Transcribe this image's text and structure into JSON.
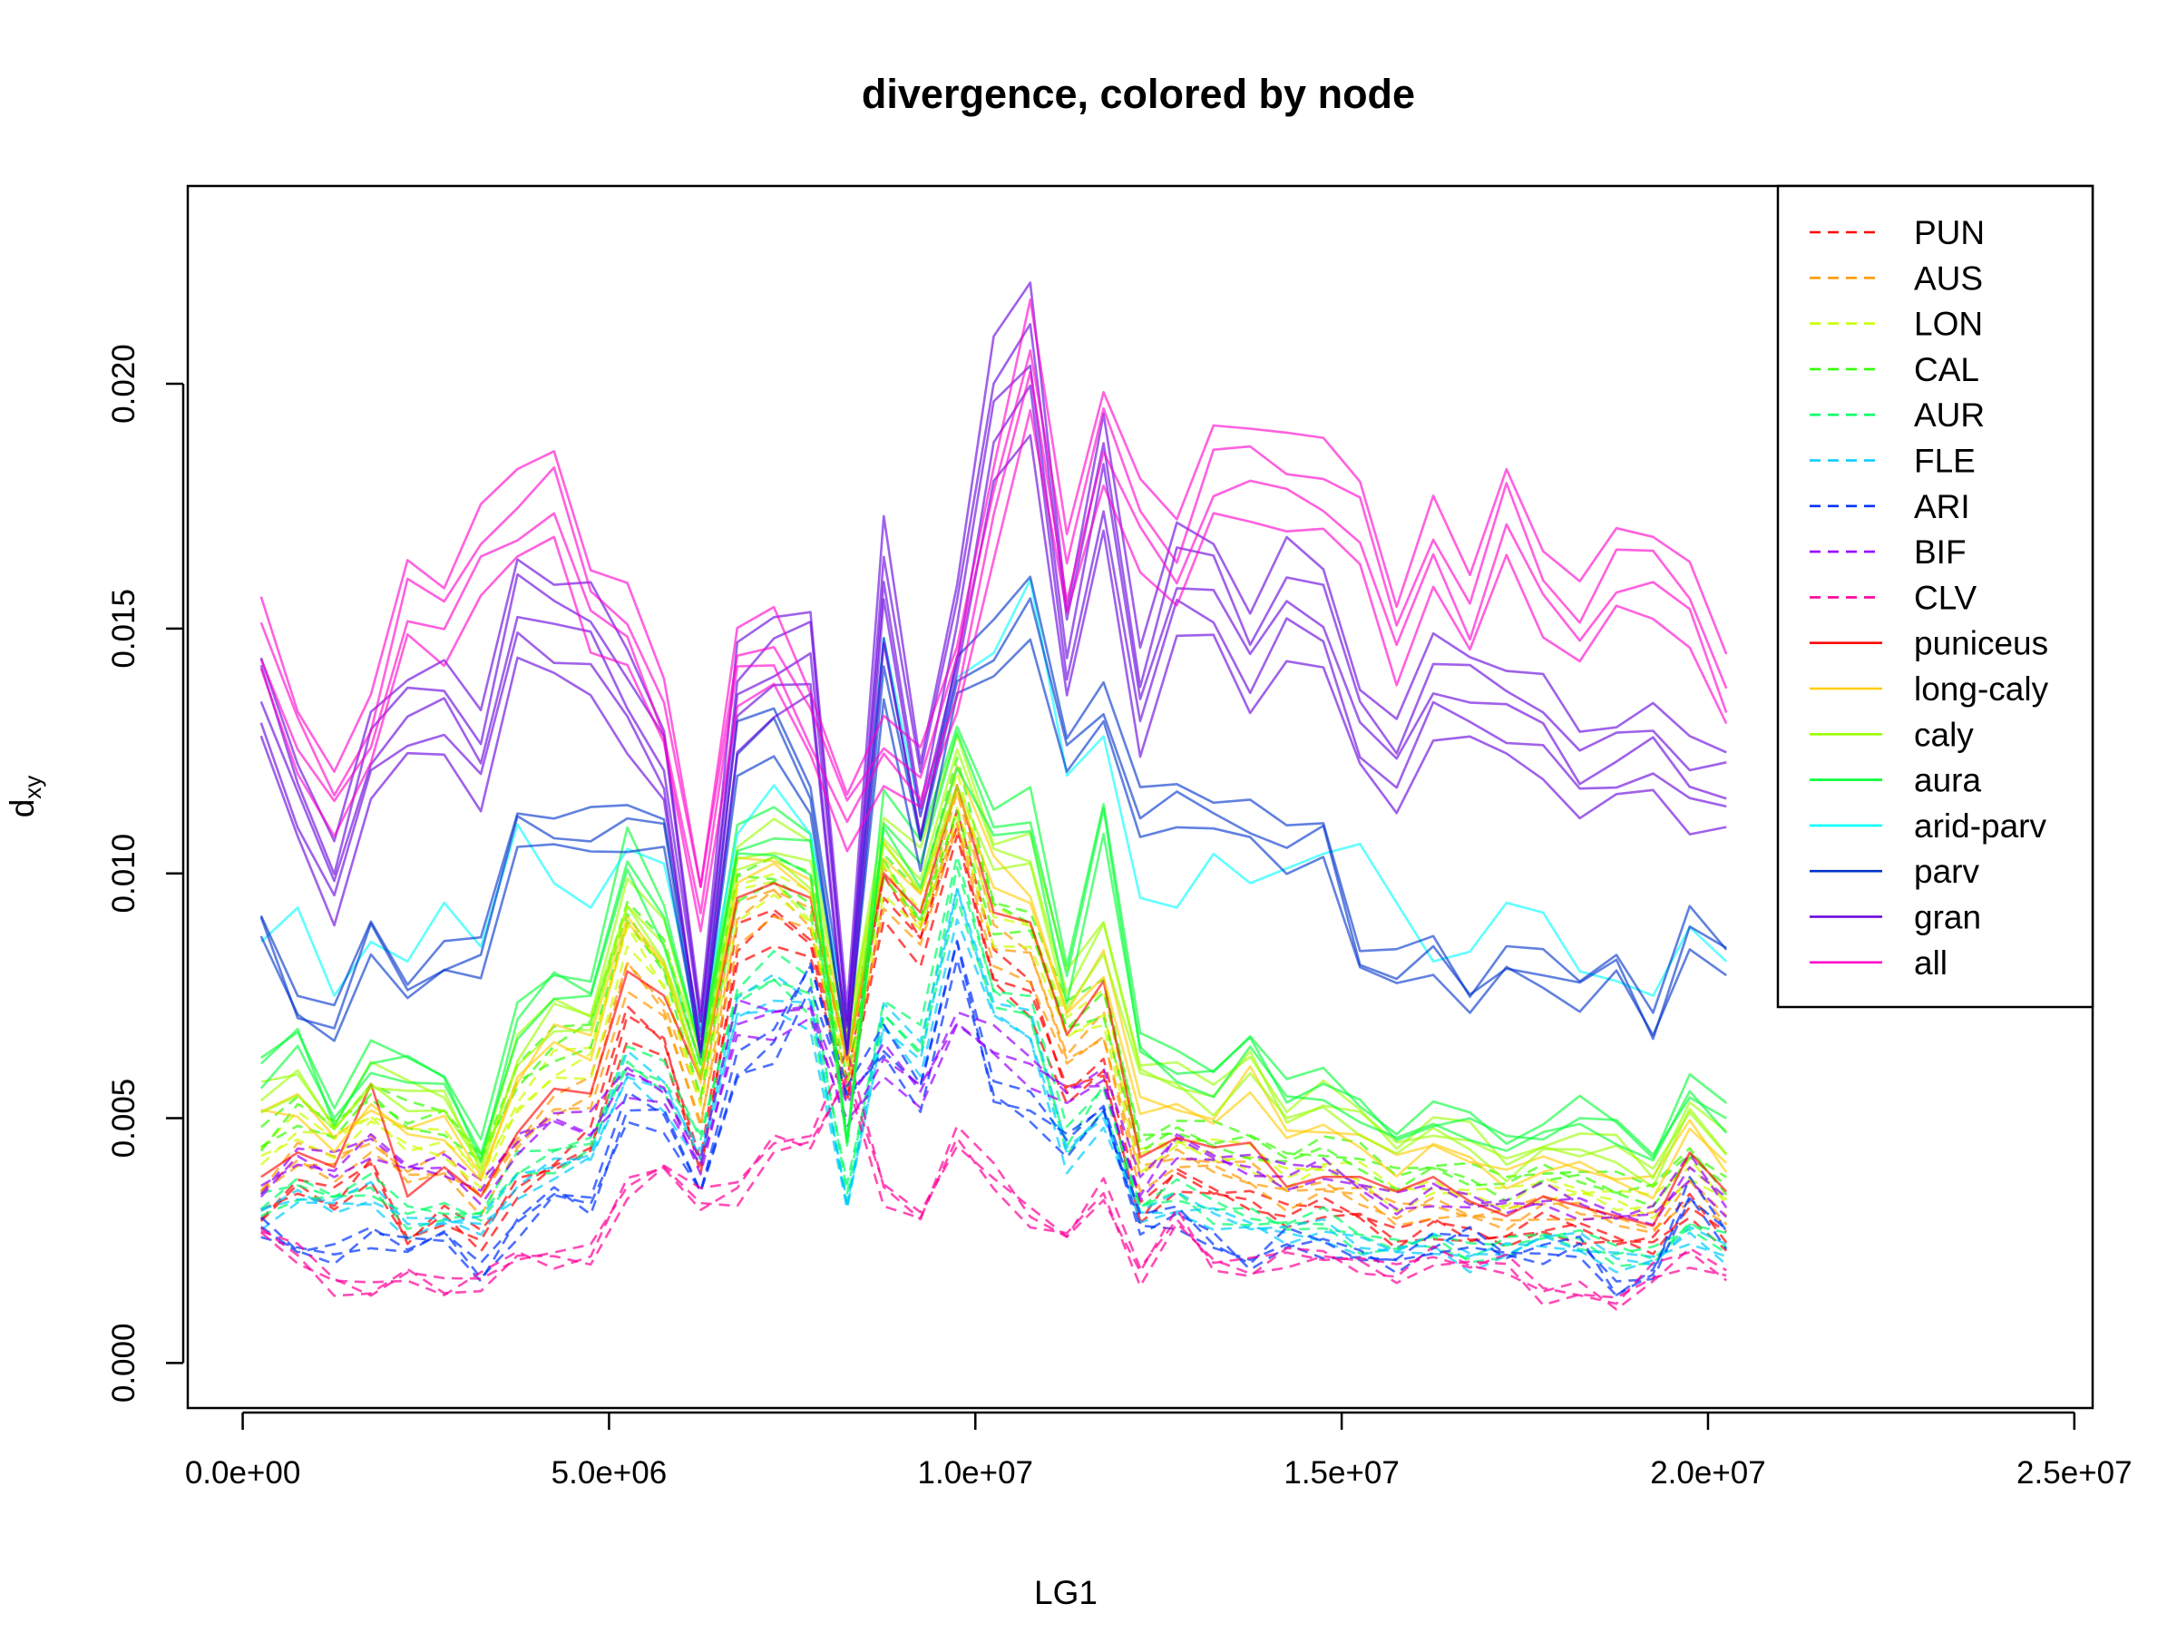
{
  "chart_data": {
    "type": "line",
    "title": "divergence, colored by node",
    "xlabel": "LG1",
    "ylabel_main": "d",
    "ylabel_sub": "xy",
    "xlim": [
      -750000,
      25250000
    ],
    "ylim": [
      -0.00092,
      0.02404
    ],
    "x_ticks": [
      0,
      5000000,
      10000000,
      15000000,
      20000000,
      25000000
    ],
    "x_tick_labels": [
      "0.0e+00",
      "5.0e+06",
      "1.0e+07",
      "1.5e+07",
      "2.0e+07",
      "2.5e+07"
    ],
    "y_ticks": [
      0.0,
      0.005,
      0.01,
      0.015,
      0.02
    ],
    "y_tick_labels": [
      "0.000",
      "0.005",
      "0.010",
      "0.015",
      "0.020"
    ],
    "grid": false,
    "legend_position": "top-right",
    "x": [
      250000,
      750000,
      1250000,
      1750000,
      2250000,
      2750000,
      3250000,
      3750000,
      4250000,
      4750000,
      5250000,
      5750000,
      6250000,
      6750000,
      7250000,
      7750000,
      8250000,
      8750000,
      9250000,
      9750000,
      10250000,
      10750000,
      11250000,
      11750000,
      12250000,
      12750000,
      13250000,
      13750000,
      14250000,
      14750000,
      15250000,
      15750000,
      16250000,
      16750000,
      17250000,
      17750000,
      18250000,
      18750000,
      19250000,
      19750000,
      20250000
    ],
    "series": [
      {
        "name": "PUN",
        "color": "#FF0000",
        "dash": true,
        "lines": 3,
        "values": [
          0.003,
          0.0036,
          0.0033,
          0.004,
          0.0025,
          0.003,
          0.0025,
          0.0036,
          0.004,
          0.0045,
          0.007,
          0.0065,
          0.004,
          0.0085,
          0.009,
          0.0085,
          0.0055,
          0.0095,
          0.0085,
          0.011,
          0.008,
          0.0075,
          0.0055,
          0.006,
          0.003,
          0.0038,
          0.0035,
          0.0033,
          0.003,
          0.0032,
          0.003,
          0.0025,
          0.0028,
          0.0026,
          0.0025,
          0.0028,
          0.0027,
          0.0025,
          0.0024,
          0.0032,
          0.0025
        ]
      },
      {
        "name": "AUS",
        "color": "#FF9900",
        "dash": true,
        "lines": 3,
        "values": [
          0.0035,
          0.0042,
          0.004,
          0.0045,
          0.0038,
          0.004,
          0.0033,
          0.0045,
          0.0052,
          0.0055,
          0.008,
          0.0072,
          0.005,
          0.009,
          0.0095,
          0.009,
          0.0058,
          0.0098,
          0.0088,
          0.0112,
          0.0085,
          0.0082,
          0.0062,
          0.0068,
          0.0038,
          0.0042,
          0.004,
          0.0038,
          0.0034,
          0.0036,
          0.0034,
          0.003,
          0.0032,
          0.003,
          0.0029,
          0.0032,
          0.0031,
          0.0029,
          0.0028,
          0.0036,
          0.0029
        ]
      },
      {
        "name": "LON",
        "color": "#CCFF00",
        "dash": true,
        "lines": 3,
        "values": [
          0.0042,
          0.0048,
          0.0045,
          0.005,
          0.0045,
          0.0045,
          0.0038,
          0.0052,
          0.006,
          0.0062,
          0.0088,
          0.0078,
          0.0055,
          0.0095,
          0.0098,
          0.0092,
          0.006,
          0.01,
          0.009,
          0.0115,
          0.009,
          0.0088,
          0.0068,
          0.0072,
          0.0042,
          0.0045,
          0.0043,
          0.0042,
          0.0038,
          0.004,
          0.0038,
          0.0034,
          0.0036,
          0.0034,
          0.0033,
          0.0036,
          0.0035,
          0.0033,
          0.0032,
          0.004,
          0.0033
        ]
      },
      {
        "name": "CAL",
        "color": "#33FF00",
        "dash": true,
        "lines": 3,
        "values": [
          0.0045,
          0.0052,
          0.0048,
          0.0055,
          0.005,
          0.005,
          0.0042,
          0.0058,
          0.0065,
          0.0068,
          0.0092,
          0.0082,
          0.0058,
          0.0098,
          0.01,
          0.0095,
          0.0062,
          0.0102,
          0.0092,
          0.0118,
          0.0092,
          0.009,
          0.007,
          0.0075,
          0.0045,
          0.0048,
          0.0046,
          0.0045,
          0.0042,
          0.0044,
          0.0042,
          0.0038,
          0.004,
          0.0038,
          0.0036,
          0.0039,
          0.0038,
          0.0036,
          0.0035,
          0.0043,
          0.0036
        ]
      },
      {
        "name": "AUR",
        "color": "#00FF66",
        "dash": true,
        "lines": 3,
        "values": [
          0.0032,
          0.0036,
          0.0034,
          0.0036,
          0.003,
          0.0031,
          0.003,
          0.004,
          0.0042,
          0.0045,
          0.0062,
          0.0058,
          0.0045,
          0.0075,
          0.008,
          0.0075,
          0.0035,
          0.0072,
          0.0065,
          0.01,
          0.0075,
          0.0072,
          0.0045,
          0.0055,
          0.0032,
          0.0035,
          0.0031,
          0.003,
          0.0028,
          0.0029,
          0.0025,
          0.0024,
          0.0025,
          0.0022,
          0.0024,
          0.0026,
          0.0025,
          0.0022,
          0.0022,
          0.0028,
          0.0024
        ]
      },
      {
        "name": "FLE",
        "color": "#00CCFF",
        "dash": true,
        "lines": 3,
        "values": [
          0.003,
          0.0034,
          0.0032,
          0.0034,
          0.0028,
          0.0029,
          0.0028,
          0.0036,
          0.004,
          0.0042,
          0.006,
          0.0055,
          0.0042,
          0.0072,
          0.0075,
          0.0072,
          0.0032,
          0.007,
          0.0062,
          0.0095,
          0.0072,
          0.0068,
          0.0042,
          0.005,
          0.003,
          0.0032,
          0.003,
          0.0028,
          0.0026,
          0.0027,
          0.0024,
          0.0023,
          0.0024,
          0.0021,
          0.0023,
          0.0025,
          0.0024,
          0.0021,
          0.0021,
          0.0026,
          0.0022
        ]
      },
      {
        "name": "ARI",
        "color": "#0033FF",
        "dash": true,
        "lines": 3,
        "values": [
          0.0028,
          0.0023,
          0.0022,
          0.0026,
          0.0024,
          0.0026,
          0.0018,
          0.0028,
          0.0035,
          0.0032,
          0.0052,
          0.005,
          0.0035,
          0.006,
          0.0065,
          0.008,
          0.0055,
          0.0065,
          0.0055,
          0.0085,
          0.0055,
          0.0052,
          0.0045,
          0.0052,
          0.0028,
          0.003,
          0.0025,
          0.002,
          0.0025,
          0.0024,
          0.0022,
          0.002,
          0.0024,
          0.0026,
          0.0022,
          0.0022,
          0.0024,
          0.0015,
          0.0018,
          0.0035,
          0.0026
        ]
      },
      {
        "name": "BIF",
        "color": "#9900FF",
        "dash": true,
        "lines": 3,
        "values": [
          0.0035,
          0.0042,
          0.004,
          0.0045,
          0.004,
          0.004,
          0.0035,
          0.0045,
          0.005,
          0.0048,
          0.0058,
          0.0055,
          0.004,
          0.007,
          0.007,
          0.0072,
          0.005,
          0.0062,
          0.0055,
          0.007,
          0.0065,
          0.006,
          0.0055,
          0.0058,
          0.0035,
          0.0045,
          0.0042,
          0.004,
          0.0038,
          0.004,
          0.0036,
          0.0032,
          0.0035,
          0.0033,
          0.0032,
          0.0034,
          0.0032,
          0.003,
          0.003,
          0.004,
          0.0032
        ]
      },
      {
        "name": "CLV",
        "color": "#FF0099",
        "dash": true,
        "lines": 3,
        "values": [
          0.0027,
          0.0022,
          0.0016,
          0.0015,
          0.0018,
          0.0015,
          0.0017,
          0.0022,
          0.0021,
          0.0022,
          0.0036,
          0.004,
          0.0033,
          0.0035,
          0.0045,
          0.0045,
          0.006,
          0.0035,
          0.003,
          0.0046,
          0.0038,
          0.003,
          0.0026,
          0.0035,
          0.0018,
          0.003,
          0.002,
          0.0019,
          0.0022,
          0.0022,
          0.002,
          0.0018,
          0.0022,
          0.002,
          0.002,
          0.0014,
          0.0015,
          0.0012,
          0.0018,
          0.0022,
          0.0018
        ]
      },
      {
        "name": "puniceus",
        "color": "#FF0000",
        "dash": false,
        "lines": 1,
        "values": [
          0.0038,
          0.0043,
          0.004,
          0.0057,
          0.0034,
          0.004,
          0.0034,
          0.0047,
          0.0056,
          0.0055,
          0.008,
          0.0075,
          0.0058,
          0.0095,
          0.0098,
          0.0095,
          0.0062,
          0.01,
          0.0092,
          0.0118,
          0.0092,
          0.009,
          0.0067,
          0.0078,
          0.0042,
          0.0046,
          0.0044,
          0.0045,
          0.0036,
          0.0038,
          0.0038,
          0.0035,
          0.0038,
          0.0033,
          0.003,
          0.0034,
          0.0032,
          0.003,
          0.0028,
          0.0043,
          0.0035
        ]
      },
      {
        "name": "long-caly",
        "color": "#FFCC00",
        "dash": false,
        "lines": 2,
        "values": [
          0.0052,
          0.0053,
          0.0044,
          0.0052,
          0.0048,
          0.0048,
          0.0037,
          0.0058,
          0.0068,
          0.0064,
          0.009,
          0.0082,
          0.006,
          0.01,
          0.0102,
          0.0098,
          0.0064,
          0.0104,
          0.0096,
          0.012,
          0.01,
          0.0094,
          0.0072,
          0.0082,
          0.0052,
          0.0052,
          0.005,
          0.0058,
          0.0046,
          0.0048,
          0.0046,
          0.004,
          0.0044,
          0.0042,
          0.0038,
          0.004,
          0.004,
          0.0038,
          0.0036,
          0.0048,
          0.004
        ]
      },
      {
        "name": "caly",
        "color": "#99FF00",
        "dash": false,
        "lines": 3,
        "values": [
          0.0054,
          0.0058,
          0.0048,
          0.0058,
          0.0055,
          0.0054,
          0.004,
          0.0063,
          0.0072,
          0.007,
          0.0095,
          0.0086,
          0.0062,
          0.0103,
          0.0106,
          0.0102,
          0.0066,
          0.0108,
          0.01,
          0.0124,
          0.0104,
          0.0104,
          0.0076,
          0.0088,
          0.006,
          0.0058,
          0.0054,
          0.0062,
          0.005,
          0.0054,
          0.005,
          0.0044,
          0.0048,
          0.0046,
          0.004,
          0.0044,
          0.0044,
          0.0044,
          0.0038,
          0.0052,
          0.0044
        ]
      },
      {
        "name": "aura",
        "color": "#00FF33",
        "dash": false,
        "lines": 3,
        "values": [
          0.006,
          0.0067,
          0.005,
          0.0062,
          0.0061,
          0.0058,
          0.0043,
          0.007,
          0.0078,
          0.0076,
          0.0104,
          0.009,
          0.0063,
          0.0106,
          0.0108,
          0.0105,
          0.0045,
          0.0112,
          0.0102,
          0.0127,
          0.011,
          0.0112,
          0.0078,
          0.0112,
          0.0065,
          0.006,
          0.0058,
          0.0066,
          0.0055,
          0.0057,
          0.0052,
          0.0046,
          0.005,
          0.0049,
          0.0045,
          0.0047,
          0.0051,
          0.0048,
          0.0042,
          0.0056,
          0.005
        ]
      },
      {
        "name": "arid-parv",
        "color": "#00FFFF",
        "dash": false,
        "lines": 1,
        "values": [
          0.0086,
          0.0093,
          0.0075,
          0.0086,
          0.0082,
          0.0094,
          0.0085,
          0.011,
          0.0098,
          0.0093,
          0.0105,
          0.0102,
          0.0068,
          0.0108,
          0.0118,
          0.0108,
          0.007,
          0.0148,
          0.0112,
          0.014,
          0.0145,
          0.016,
          0.012,
          0.0128,
          0.0095,
          0.0093,
          0.0104,
          0.0098,
          0.0101,
          0.0104,
          0.0106,
          0.0094,
          0.0082,
          0.0084,
          0.0094,
          0.0092,
          0.008,
          0.0078,
          0.0075,
          0.0089,
          0.0082
        ]
      },
      {
        "name": "parv",
        "color": "#0033CC",
        "dash": false,
        "lines": 3,
        "values": [
          0.009,
          0.0072,
          0.0069,
          0.0088,
          0.0076,
          0.0082,
          0.0083,
          0.011,
          0.0108,
          0.0108,
          0.011,
          0.0109,
          0.0064,
          0.0125,
          0.013,
          0.0115,
          0.0065,
          0.0142,
          0.0105,
          0.014,
          0.0145,
          0.0155,
          0.0125,
          0.0134,
          0.0112,
          0.0115,
          0.0112,
          0.011,
          0.0105,
          0.0108,
          0.0082,
          0.008,
          0.0084,
          0.0074,
          0.0082,
          0.008,
          0.0076,
          0.0082,
          0.0068,
          0.0089,
          0.0083
        ]
      },
      {
        "name": "gran",
        "color": "#6600DD",
        "dash": false,
        "lines": 5,
        "values": [
          0.0136,
          0.0115,
          0.0098,
          0.0124,
          0.0132,
          0.0134,
          0.0123,
          0.0154,
          0.015,
          0.0148,
          0.0135,
          0.0122,
          0.0068,
          0.0136,
          0.0142,
          0.0145,
          0.0068,
          0.016,
          0.0115,
          0.015,
          0.0195,
          0.0205,
          0.0145,
          0.0182,
          0.0135,
          0.016,
          0.0158,
          0.0143,
          0.0156,
          0.0152,
          0.013,
          0.0122,
          0.0138,
          0.0136,
          0.0133,
          0.013,
          0.012,
          0.0123,
          0.0126,
          0.0118,
          0.0117
        ]
      },
      {
        "name": "all",
        "color": "#FF00CC",
        "dash": false,
        "lines": 4,
        "values": [
          0.0148,
          0.0128,
          0.0115,
          0.0128,
          0.0156,
          0.0152,
          0.0166,
          0.0172,
          0.0178,
          0.0155,
          0.015,
          0.0132,
          0.0094,
          0.0143,
          0.0145,
          0.013,
          0.0112,
          0.0125,
          0.0118,
          0.014,
          0.0175,
          0.0205,
          0.016,
          0.019,
          0.0172,
          0.0162,
          0.0182,
          0.0183,
          0.018,
          0.0178,
          0.0172,
          0.0148,
          0.0167,
          0.0152,
          0.0175,
          0.0158,
          0.015,
          0.0162,
          0.0162,
          0.0155,
          0.0136
        ]
      }
    ]
  }
}
